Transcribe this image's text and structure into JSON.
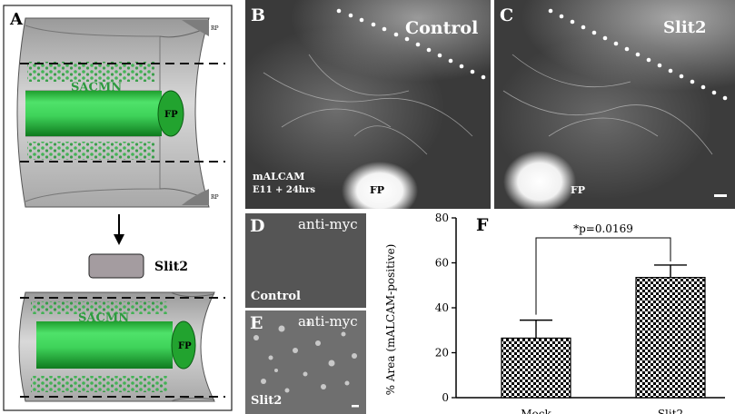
{
  "panel_a": {
    "letter": "A",
    "top_cylinder": {
      "label": "SACMN",
      "fp_label": "FP",
      "rp_label_top": "RP",
      "rp_label_bottom": "RP"
    },
    "treatment_label": "Slit2",
    "bottom_cylinder": {
      "label": "SACMN",
      "fp_label": "FP"
    }
  },
  "panel_b": {
    "letter": "B",
    "condition": "Control",
    "stain": "mALCAM",
    "timepoint": "E11 + 24hrs",
    "fp_label": "FP"
  },
  "panel_c": {
    "letter": "C",
    "condition": "Slit2",
    "fp_label": "FP"
  },
  "panel_d": {
    "letter": "D",
    "antibody": "anti-myc",
    "condition": "Control"
  },
  "panel_e": {
    "letter": "E",
    "antibody": "anti-myc",
    "condition": "Slit2"
  },
  "panel_f": {
    "letter": "F",
    "significance": "*p=0.0169"
  },
  "chart_data": {
    "type": "bar",
    "categories": [
      "Mock",
      "Slit2"
    ],
    "values": [
      26.5,
      53.5
    ],
    "errors": [
      8,
      5.5
    ],
    "ylabel": "% Area (mALCAM-positive)",
    "ylim": [
      0,
      80
    ],
    "yticks": [
      0,
      20,
      40,
      60,
      80
    ],
    "bar_pattern": "checkerboard",
    "annotation": "*p=0.0169"
  }
}
